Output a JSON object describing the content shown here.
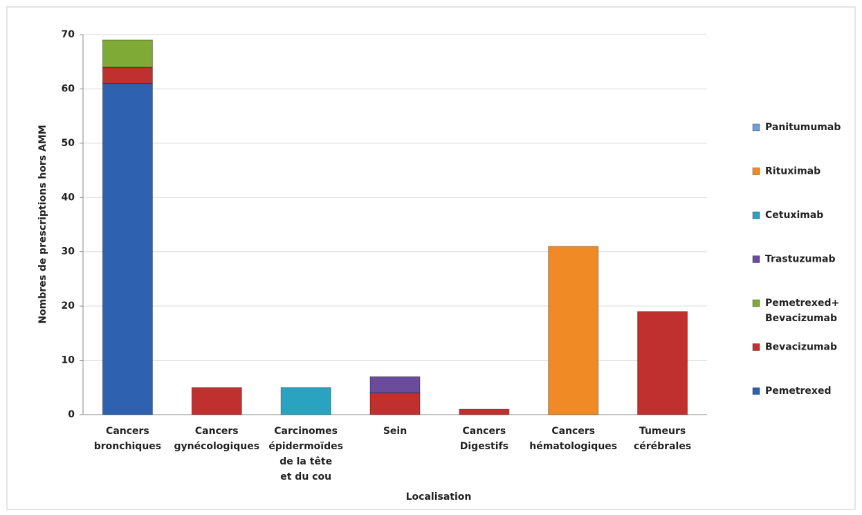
{
  "chart_data": {
    "type": "stacked_bar",
    "x_label": "Localisation",
    "y_label": "Nombres de prescriptions  hors AMM",
    "categories": [
      "Cancers bronchiques",
      "Cancers gynécologiques",
      "Carcinomes épidermoïdes de la tête et du cou",
      "Sein",
      "Cancers Digestifs",
      "Cancers hématologiques",
      "Tumeurs cérébrales"
    ],
    "series": [
      {
        "name": "Pemetrexed",
        "color": "#2e62b0",
        "values": [
          61,
          0,
          0,
          0,
          0,
          0,
          0
        ]
      },
      {
        "name": "Bevacizumab",
        "color": "#c0302f",
        "values": [
          3,
          5,
          0,
          4,
          1,
          0,
          19
        ]
      },
      {
        "name": "Pemetrexed+ Bevacizumab",
        "color": "#7eaa35",
        "values": [
          5,
          0,
          0,
          0,
          0,
          0,
          0
        ]
      },
      {
        "name": "Trastuzumab",
        "color": "#6b4c9a",
        "values": [
          0,
          0,
          0,
          3,
          0,
          0,
          0
        ]
      },
      {
        "name": "Cetuximab",
        "color": "#2aa3c0",
        "values": [
          0,
          0,
          5,
          0,
          0,
          0,
          0
        ]
      },
      {
        "name": "Rituximab",
        "color": "#f08a24",
        "values": [
          0,
          0,
          0,
          0,
          0,
          31,
          0
        ]
      },
      {
        "name": "Panitumumab",
        "color": "#6f9fd8",
        "values": [
          0,
          0,
          0,
          0,
          0,
          0,
          0
        ]
      }
    ],
    "ylim": [
      0,
      70
    ],
    "yticks": [
      0,
      10,
      20,
      30,
      40,
      50,
      60,
      70
    ],
    "grid": true,
    "legend": "right"
  }
}
